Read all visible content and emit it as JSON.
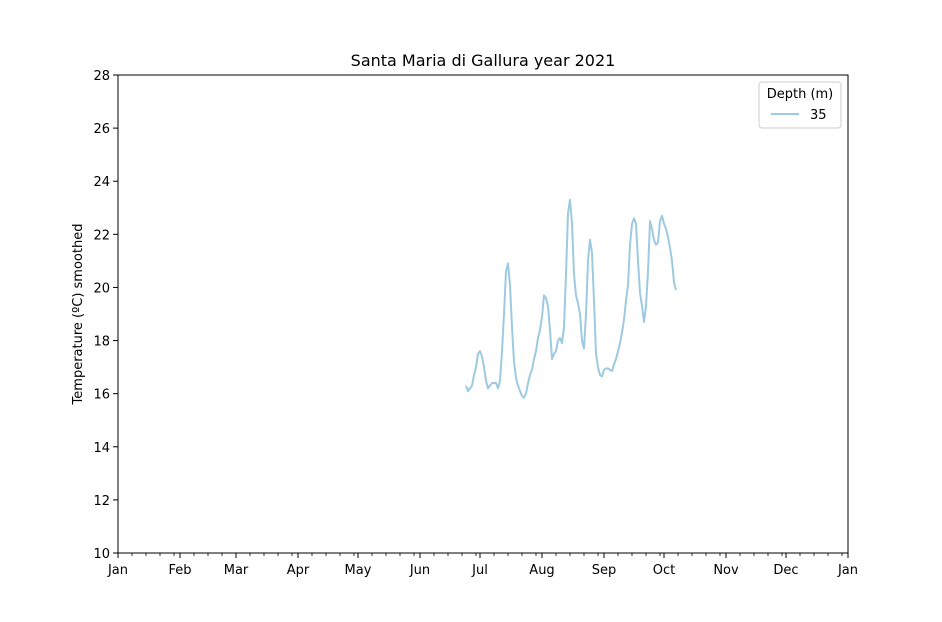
{
  "chart_data": {
    "type": "line",
    "title": "Santa Maria di Gallura year 2021",
    "xlabel": "",
    "ylabel": "Temperature (ºC) smoothed",
    "xlim": [
      "2021-01-01",
      "2022-01-01"
    ],
    "ylim": [
      10,
      28
    ],
    "x_ticks": [
      "Jan",
      "Feb",
      "Mar",
      "Apr",
      "May",
      "Jun",
      "Jul",
      "Aug",
      "Sep",
      "Oct",
      "Nov",
      "Dec",
      "Jan"
    ],
    "y_ticks": [
      "10",
      "12",
      "14",
      "16",
      "18",
      "20",
      "22",
      "24",
      "26",
      "28"
    ],
    "grid": false,
    "legend": {
      "title": "Depth (m)",
      "position": "top-right"
    },
    "series": [
      {
        "name": "35",
        "color": "#9ecae1",
        "points": [
          [
            "2021-06-24",
            16.3
          ],
          [
            "2021-06-25",
            16.1
          ],
          [
            "2021-06-26",
            16.2
          ],
          [
            "2021-06-27",
            16.3
          ],
          [
            "2021-06-28",
            16.7
          ],
          [
            "2021-06-29",
            17.0
          ],
          [
            "2021-06-30",
            17.5
          ],
          [
            "2021-07-01",
            17.6
          ],
          [
            "2021-07-02",
            17.4
          ],
          [
            "2021-07-03",
            17.0
          ],
          [
            "2021-07-04",
            16.5
          ],
          [
            "2021-07-05",
            16.2
          ],
          [
            "2021-07-06",
            16.3
          ],
          [
            "2021-07-07",
            16.4
          ],
          [
            "2021-07-08",
            16.4
          ],
          [
            "2021-07-09",
            16.4
          ],
          [
            "2021-07-10",
            16.2
          ],
          [
            "2021-07-11",
            16.5
          ],
          [
            "2021-07-12",
            17.6
          ],
          [
            "2021-07-13",
            19.0
          ],
          [
            "2021-07-14",
            20.6
          ],
          [
            "2021-07-15",
            20.9
          ],
          [
            "2021-07-16",
            20.1
          ],
          [
            "2021-07-17",
            18.5
          ],
          [
            "2021-07-18",
            17.2
          ],
          [
            "2021-07-19",
            16.6
          ],
          [
            "2021-07-20",
            16.3
          ],
          [
            "2021-07-21",
            16.1
          ],
          [
            "2021-07-22",
            15.9
          ],
          [
            "2021-07-23",
            15.85
          ],
          [
            "2021-07-24",
            16.0
          ],
          [
            "2021-07-25",
            16.4
          ],
          [
            "2021-07-26",
            16.7
          ],
          [
            "2021-07-27",
            16.9
          ],
          [
            "2021-07-28",
            17.3
          ],
          [
            "2021-07-29",
            17.6
          ],
          [
            "2021-07-30",
            18.1
          ],
          [
            "2021-07-31",
            18.4
          ],
          [
            "2021-08-01",
            18.9
          ],
          [
            "2021-08-02",
            19.7
          ],
          [
            "2021-08-03",
            19.6
          ],
          [
            "2021-08-04",
            19.3
          ],
          [
            "2021-08-05",
            18.4
          ],
          [
            "2021-08-06",
            17.3
          ],
          [
            "2021-08-07",
            17.5
          ],
          [
            "2021-08-08",
            17.6
          ],
          [
            "2021-08-09",
            18.0
          ],
          [
            "2021-08-10",
            18.1
          ],
          [
            "2021-08-11",
            17.9
          ],
          [
            "2021-08-12",
            18.5
          ],
          [
            "2021-08-13",
            20.5
          ],
          [
            "2021-08-14",
            22.8
          ],
          [
            "2021-08-15",
            23.3
          ],
          [
            "2021-08-16",
            22.4
          ],
          [
            "2021-08-17",
            20.5
          ],
          [
            "2021-08-18",
            19.7
          ],
          [
            "2021-08-19",
            19.4
          ],
          [
            "2021-08-20",
            19.0
          ],
          [
            "2021-08-21",
            18.0
          ],
          [
            "2021-08-22",
            17.7
          ],
          [
            "2021-08-23",
            19.0
          ],
          [
            "2021-08-24",
            21.0
          ],
          [
            "2021-08-25",
            21.8
          ],
          [
            "2021-08-26",
            21.3
          ],
          [
            "2021-08-27",
            19.5
          ],
          [
            "2021-08-28",
            17.5
          ],
          [
            "2021-08-29",
            17.0
          ],
          [
            "2021-08-30",
            16.7
          ],
          [
            "2021-08-31",
            16.65
          ],
          [
            "2021-09-01",
            16.9
          ],
          [
            "2021-09-02",
            16.95
          ],
          [
            "2021-09-03",
            16.95
          ],
          [
            "2021-09-04",
            16.9
          ],
          [
            "2021-09-05",
            16.85
          ],
          [
            "2021-09-06",
            17.1
          ],
          [
            "2021-09-07",
            17.3
          ],
          [
            "2021-09-08",
            17.6
          ],
          [
            "2021-09-09",
            17.9
          ],
          [
            "2021-09-10",
            18.3
          ],
          [
            "2021-09-11",
            18.8
          ],
          [
            "2021-09-12",
            19.5
          ],
          [
            "2021-09-13",
            20.1
          ],
          [
            "2021-09-14",
            21.6
          ],
          [
            "2021-09-15",
            22.4
          ],
          [
            "2021-09-16",
            22.6
          ],
          [
            "2021-09-17",
            22.4
          ],
          [
            "2021-09-18",
            21.0
          ],
          [
            "2021-09-19",
            19.8
          ],
          [
            "2021-09-20",
            19.3
          ],
          [
            "2021-09-21",
            18.7
          ],
          [
            "2021-09-22",
            19.3
          ],
          [
            "2021-09-23",
            20.6
          ],
          [
            "2021-09-24",
            22.5
          ],
          [
            "2021-09-25",
            22.2
          ],
          [
            "2021-09-26",
            21.8
          ],
          [
            "2021-09-27",
            21.6
          ],
          [
            "2021-09-28",
            21.7
          ],
          [
            "2021-09-29",
            22.5
          ],
          [
            "2021-09-30",
            22.7
          ],
          [
            "2021-10-01",
            22.4
          ],
          [
            "2021-10-02",
            22.2
          ],
          [
            "2021-10-03",
            21.9
          ],
          [
            "2021-10-04",
            21.5
          ],
          [
            "2021-10-05",
            21.0
          ],
          [
            "2021-10-06",
            20.2
          ],
          [
            "2021-10-07",
            19.9
          ]
        ]
      }
    ]
  }
}
